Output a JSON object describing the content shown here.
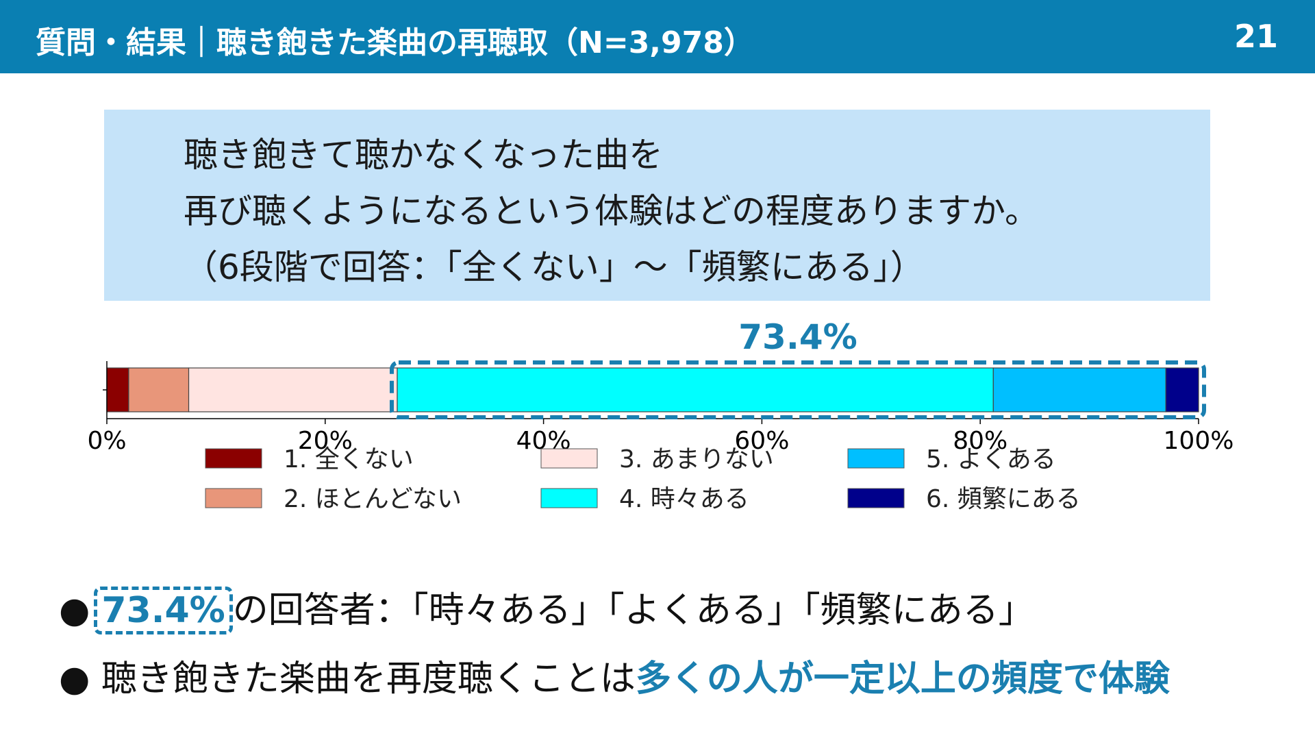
{
  "header": {
    "title": "質問・結果｜聴き飽きた楽曲の再聴取（N=3,978）",
    "page_number": "21"
  },
  "question": {
    "lines": [
      "聴き飽きて聴かなくなった曲を",
      "再び聴くようになるという体験はどの程度ありますか。",
      "（6段階で回答：「全くない」～「頻繁にある」）"
    ]
  },
  "chart_data": {
    "type": "bar",
    "orientation": "horizontal",
    "stacked": true,
    "categories": [
      ""
    ],
    "series": [
      {
        "name": "1. 全くない",
        "values": [
          2.0
        ],
        "color": "#8b0000"
      },
      {
        "name": "2. ほとんどない",
        "values": [
          5.5
        ],
        "color": "#e8967a"
      },
      {
        "name": "3. あまりない",
        "values": [
          19.1
        ],
        "color": "#ffe4e1"
      },
      {
        "name": "4. 時々ある",
        "values": [
          54.6
        ],
        "color": "#00ffff"
      },
      {
        "name": "5. よくある",
        "values": [
          15.8
        ],
        "color": "#00bfff"
      },
      {
        "name": "6. 頻繁にある",
        "values": [
          3.0
        ],
        "color": "#00008b"
      }
    ],
    "xlim": [
      0,
      100
    ],
    "x_ticks": [
      "0%",
      "20%",
      "40%",
      "60%",
      "80%",
      "100%"
    ],
    "annotation": {
      "text": "73.4%",
      "covers_series": [
        "4. 時々ある",
        "5. よくある",
        "6. 頻繁にある"
      ],
      "color": "#1a7fb0"
    },
    "legend_position": "bottom"
  },
  "bullets": {
    "b1_pct": "73.4%",
    "b1_text": "の回答者：「時々ある」「よくある」「頻繁にある」",
    "b2_text": "聴き飽きた楽曲を再度聴くことは",
    "b2_highlight": "多くの人が一定以上の頻度で体験",
    "marker": "●"
  }
}
